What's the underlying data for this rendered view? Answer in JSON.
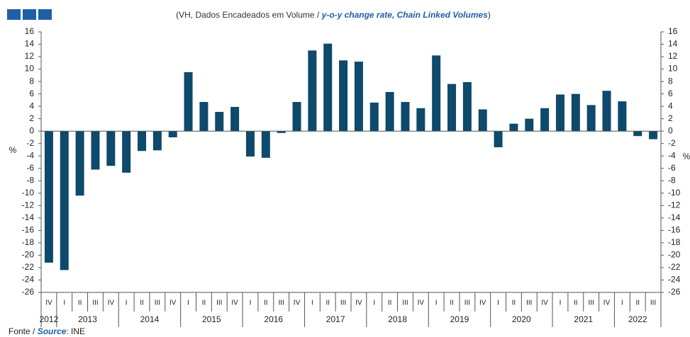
{
  "chart_data": {
    "type": "bar",
    "subtitle_parts": [
      "(VH, Dados Encadeados em Volume / ",
      "y-o-y change rate, Chain Linked Volumes",
      ")"
    ],
    "y_label": "%",
    "y2_label": "%",
    "source_parts": [
      "Fonte / ",
      "Source",
      ": INE"
    ],
    "categories": [
      "IV",
      "I",
      "II",
      "III",
      "IV",
      "I",
      "II",
      "III",
      "IV",
      "I",
      "II",
      "III",
      "IV",
      "I",
      "II",
      "III",
      "IV",
      "I",
      "II",
      "III",
      "IV",
      "I",
      "II",
      "III",
      "IV",
      "I",
      "II",
      "III",
      "IV",
      "I",
      "II",
      "III",
      "IV",
      "I",
      "II",
      "III",
      "IV",
      "I",
      "II",
      "III"
    ],
    "year_labels": [
      "2012",
      "2013",
      "2014",
      "2015",
      "2016",
      "2017",
      "2018",
      "2019",
      "2020",
      "2021",
      "2022"
    ],
    "values": [
      -21.2,
      -22.4,
      -10.4,
      -6.2,
      -5.6,
      -6.7,
      -3.2,
      -3.1,
      -1.0,
      9.5,
      4.7,
      3.1,
      3.9,
      -4.1,
      -4.3,
      -0.3,
      4.7,
      13.0,
      14.1,
      11.4,
      11.2,
      4.6,
      6.3,
      4.7,
      3.7,
      12.2,
      7.6,
      7.9,
      3.5,
      -2.6,
      1.2,
      2.0,
      3.7,
      5.9,
      6.0,
      4.2,
      6.5,
      4.8,
      -0.8,
      -1.3
    ],
    "color": "#0d4a6b",
    "ylim": [
      -26,
      16
    ],
    "yticks": [
      -26,
      -24,
      -22,
      -20,
      -18,
      -16,
      -14,
      -12,
      -10,
      -8,
      -6,
      -4,
      -2,
      0,
      2,
      4,
      6,
      8,
      10,
      12,
      14,
      16
    ],
    "y2lim": [
      -26,
      16
    ],
    "y2ticks": [
      -26,
      -24,
      -22,
      -20,
      -18,
      -16,
      -14,
      -12,
      -10,
      -8,
      -6,
      -4,
      -2,
      0,
      2,
      4,
      6,
      8,
      10,
      12,
      14,
      16
    ]
  }
}
